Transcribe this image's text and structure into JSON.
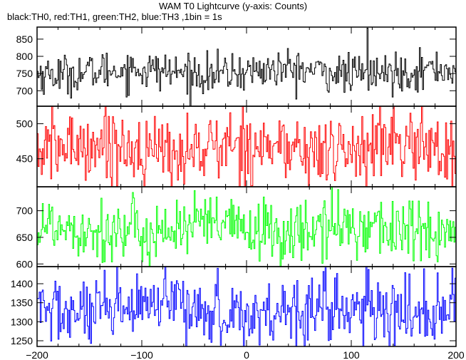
{
  "header": {
    "title": "WAM T0 Lightcurve (y-axis: Counts)",
    "subtitle": "black:TH0, red:TH1, green:TH2, blue:TH3 ,1bin = 1s"
  },
  "colors": {
    "TH0": "#000000",
    "TH1": "#ff0000",
    "TH2": "#00ff00",
    "TH3": "#0000ff"
  },
  "chart_data": [
    {
      "type": "line",
      "name": "TH0",
      "color": "#000000",
      "xlim": [
        -200,
        200
      ],
      "ylim": [
        655,
        885
      ],
      "yticks": [
        700,
        750,
        800,
        850
      ],
      "xticks": [
        -200,
        -100,
        0,
        100,
        200
      ],
      "x_step": 1,
      "mean": 755,
      "noise": 28,
      "spikes": [
        {
          "x": 115,
          "y": 882
        }
      ]
    },
    {
      "type": "line",
      "name": "TH1",
      "color": "#ff0000",
      "xlim": [
        -200,
        200
      ],
      "ylim": [
        410,
        525
      ],
      "yticks": [
        450,
        500
      ],
      "xticks": [
        -200,
        -100,
        0,
        100,
        200
      ],
      "x_step": 1,
      "mean": 465,
      "noise": 26
    },
    {
      "type": "line",
      "name": "TH2",
      "color": "#00ff00",
      "xlim": [
        -200,
        200
      ],
      "ylim": [
        595,
        745
      ],
      "yticks": [
        600,
        650,
        700
      ],
      "xticks": [
        -200,
        -100,
        0,
        100,
        200
      ],
      "x_step": 1,
      "mean": 665,
      "noise": 30
    },
    {
      "type": "line",
      "name": "TH3",
      "color": "#0000ff",
      "xlim": [
        -200,
        200
      ],
      "ylim": [
        1235,
        1445
      ],
      "yticks": [
        1250,
        1300,
        1350,
        1400
      ],
      "xticks": [
        -200,
        -100,
        0,
        100,
        200
      ],
      "x_step": 1,
      "mean": 1330,
      "noise": 45
    }
  ]
}
